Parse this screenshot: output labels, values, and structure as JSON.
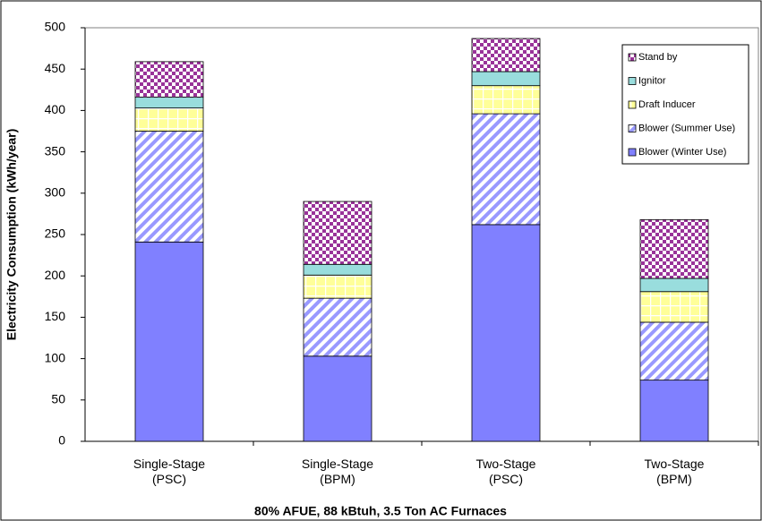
{
  "chart_data": {
    "type": "stacked-bar",
    "categories": [
      "Single-Stage\n(PSC)",
      "Single-Stage\n(BPM)",
      "Two-Stage\n(PSC)",
      "Two-Stage\n(BPM)"
    ],
    "series": [
      {
        "name": "Blower (Winter Use)",
        "color": "#8080ff",
        "values": [
          241,
          103,
          262,
          74
        ]
      },
      {
        "name": "Blower (Summer Use)",
        "color": "#9999ff",
        "values": [
          134,
          70,
          134,
          70
        ]
      },
      {
        "name": "Draft Inducer",
        "color": "#ffff99",
        "values": [
          28,
          28,
          34,
          37
        ]
      },
      {
        "name": "Ignitor",
        "color": "#99dddd",
        "values": [
          13,
          13,
          17,
          16
        ]
      },
      {
        "name": "Stand by",
        "color": "#993399",
        "values": [
          43,
          76,
          40,
          71
        ]
      }
    ],
    "y_label": "Electricity Consumption (kWh/year)",
    "x_label": "80% AFUE, 88 kBtuh, 3.5 Ton AC Furnaces",
    "ylim": [
      0,
      500
    ],
    "yticks": [
      0,
      50,
      100,
      150,
      200,
      250,
      300,
      350,
      400,
      450,
      500
    ],
    "legend": "upper-right"
  }
}
